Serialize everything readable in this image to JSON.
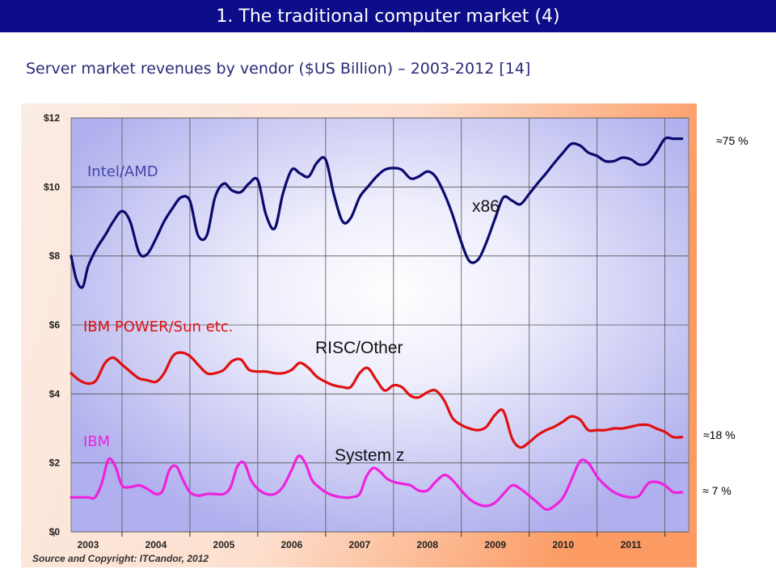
{
  "header": {
    "title": "1. The traditional computer market (4)",
    "subtitle": "Server market revenues by vendor ($US Billion) – 2003-2012 [14]"
  },
  "colors": {
    "header_bg": "#0d0d8a",
    "x86": "#0a0a6e",
    "risc": "#e01010",
    "systemz": "#ee22dd",
    "annot_x86": "#4444aa",
    "annot_risc": "#e01010",
    "annot_ibm": "#ee22dd"
  },
  "shares": {
    "x86": "≈75 %",
    "risc": "≈18 %",
    "ibm": "≈ 7 %"
  },
  "chart_data": {
    "type": "line",
    "title": "",
    "xlabel": "",
    "ylabel": "",
    "ylim": [
      0,
      12
    ],
    "xlim": [
      2002.75,
      2011.85
    ],
    "y_ticks": [
      "$0",
      "$2",
      "$4",
      "$6",
      "$8",
      "$10",
      "$12"
    ],
    "x_ticks": [
      "2003",
      "2004",
      "2005",
      "2006",
      "2007",
      "2008",
      "2009",
      "2010",
      "2011"
    ],
    "grid": true,
    "source": "Source and Copyright: ITCandor, 2012",
    "annotations": {
      "x86_label": "Intel/AMD",
      "risc_label": "IBM POWER/Sun etc.",
      "ibm_label": "IBM",
      "x86_series_tag": "x86",
      "risc_series_tag": "RISC/Other",
      "systemz_series_tag": "System z"
    },
    "series": [
      {
        "name": "x86",
        "x": [
          2002.75,
          2002.83,
          2002.92,
          2003.0,
          2003.12,
          2003.25,
          2003.37,
          2003.5,
          2003.62,
          2003.75,
          2003.87,
          2004.0,
          2004.12,
          2004.25,
          2004.37,
          2004.5,
          2004.62,
          2004.75,
          2004.87,
          2005.0,
          2005.12,
          2005.25,
          2005.37,
          2005.5,
          2005.62,
          2005.75,
          2005.87,
          2006.0,
          2006.12,
          2006.25,
          2006.37,
          2006.5,
          2006.62,
          2006.75,
          2006.87,
          2007.0,
          2007.12,
          2007.25,
          2007.37,
          2007.5,
          2007.62,
          2007.75,
          2007.87,
          2008.0,
          2008.12,
          2008.25,
          2008.37,
          2008.5,
          2008.62,
          2008.75,
          2008.87,
          2009.0,
          2009.12,
          2009.25,
          2009.37,
          2009.5,
          2009.62,
          2009.75,
          2009.87,
          2010.0,
          2010.12,
          2010.25,
          2010.37,
          2010.5,
          2010.62,
          2010.75,
          2010.87,
          2011.0,
          2011.12,
          2011.25,
          2011.37,
          2011.5,
          2011.62,
          2011.75
        ],
        "values": [
          8.0,
          7.3,
          7.1,
          7.7,
          8.2,
          8.6,
          9.0,
          9.3,
          9.0,
          8.1,
          8.05,
          8.5,
          9.0,
          9.4,
          9.7,
          9.6,
          8.6,
          8.6,
          9.7,
          10.1,
          9.9,
          9.85,
          10.1,
          10.2,
          9.2,
          8.8,
          9.8,
          10.5,
          10.4,
          10.3,
          10.7,
          10.8,
          9.8,
          9.0,
          9.1,
          9.7,
          10.0,
          10.3,
          10.5,
          10.55,
          10.5,
          10.25,
          10.3,
          10.45,
          10.3,
          9.8,
          9.2,
          8.4,
          7.85,
          7.9,
          8.4,
          9.1,
          9.7,
          9.6,
          9.5,
          9.8,
          10.1,
          10.4,
          10.7,
          11.0,
          11.25,
          11.2,
          11.0,
          10.9,
          10.75,
          10.75,
          10.85,
          10.8,
          10.65,
          10.7,
          11.0,
          11.4,
          11.4,
          11.4
        ]
      },
      {
        "name": "RISC/Other",
        "x": [
          2002.75,
          2002.87,
          2003.0,
          2003.12,
          2003.25,
          2003.37,
          2003.5,
          2003.62,
          2003.75,
          2003.87,
          2004.0,
          2004.12,
          2004.25,
          2004.37,
          2004.5,
          2004.62,
          2004.75,
          2004.87,
          2005.0,
          2005.12,
          2005.25,
          2005.37,
          2005.5,
          2005.62,
          2005.75,
          2005.87,
          2006.0,
          2006.12,
          2006.25,
          2006.37,
          2006.5,
          2006.62,
          2006.75,
          2006.87,
          2007.0,
          2007.12,
          2007.25,
          2007.37,
          2007.5,
          2007.62,
          2007.75,
          2007.87,
          2008.0,
          2008.12,
          2008.25,
          2008.37,
          2008.5,
          2008.62,
          2008.75,
          2008.87,
          2009.0,
          2009.12,
          2009.25,
          2009.37,
          2009.5,
          2009.62,
          2009.75,
          2009.87,
          2010.0,
          2010.12,
          2010.25,
          2010.37,
          2010.5,
          2010.62,
          2010.75,
          2010.87,
          2011.0,
          2011.12,
          2011.25,
          2011.37,
          2011.5,
          2011.62,
          2011.75
        ],
        "values": [
          4.6,
          4.4,
          4.3,
          4.4,
          4.9,
          5.05,
          4.85,
          4.65,
          4.45,
          4.4,
          4.35,
          4.6,
          5.1,
          5.2,
          5.1,
          4.85,
          4.6,
          4.6,
          4.7,
          4.95,
          5.0,
          4.7,
          4.65,
          4.65,
          4.6,
          4.6,
          4.7,
          4.9,
          4.75,
          4.5,
          4.35,
          4.25,
          4.2,
          4.2,
          4.6,
          4.75,
          4.4,
          4.1,
          4.25,
          4.2,
          3.95,
          3.9,
          4.05,
          4.1,
          3.8,
          3.3,
          3.1,
          3.0,
          2.95,
          3.05,
          3.4,
          3.5,
          2.7,
          2.45,
          2.6,
          2.8,
          2.95,
          3.05,
          3.2,
          3.35,
          3.25,
          2.95,
          2.95,
          2.95,
          3.0,
          3.0,
          3.05,
          3.1,
          3.1,
          3.0,
          2.9,
          2.75,
          2.75
        ]
      },
      {
        "name": "System z",
        "x": [
          2002.75,
          2002.87,
          2003.0,
          2003.1,
          2003.2,
          2003.3,
          2003.4,
          2003.5,
          2003.62,
          2003.75,
          2003.87,
          2004.0,
          2004.1,
          2004.2,
          2004.3,
          2004.4,
          2004.5,
          2004.62,
          2004.75,
          2004.87,
          2005.0,
          2005.1,
          2005.2,
          2005.3,
          2005.4,
          2005.5,
          2005.62,
          2005.75,
          2005.87,
          2006.0,
          2006.1,
          2006.2,
          2006.3,
          2006.4,
          2006.5,
          2006.62,
          2006.75,
          2006.87,
          2007.0,
          2007.1,
          2007.2,
          2007.3,
          2007.4,
          2007.5,
          2007.62,
          2007.75,
          2007.87,
          2008.0,
          2008.12,
          2008.25,
          2008.37,
          2008.5,
          2008.62,
          2008.75,
          2008.87,
          2009.0,
          2009.12,
          2009.25,
          2009.37,
          2009.5,
          2009.62,
          2009.75,
          2009.87,
          2010.0,
          2010.12,
          2010.25,
          2010.37,
          2010.5,
          2010.62,
          2010.75,
          2010.87,
          2011.0,
          2011.12,
          2011.25,
          2011.37,
          2011.5,
          2011.62,
          2011.75
        ],
        "values": [
          1.0,
          1.0,
          1.0,
          1.0,
          1.4,
          2.1,
          1.9,
          1.35,
          1.3,
          1.35,
          1.25,
          1.1,
          1.2,
          1.8,
          1.9,
          1.5,
          1.15,
          1.05,
          1.1,
          1.1,
          1.1,
          1.3,
          1.9,
          2.0,
          1.5,
          1.25,
          1.1,
          1.1,
          1.3,
          1.8,
          2.2,
          2.0,
          1.5,
          1.3,
          1.15,
          1.05,
          1.0,
          1.0,
          1.1,
          1.6,
          1.85,
          1.75,
          1.55,
          1.45,
          1.4,
          1.35,
          1.2,
          1.2,
          1.45,
          1.65,
          1.5,
          1.2,
          0.95,
          0.8,
          0.75,
          0.85,
          1.1,
          1.35,
          1.25,
          1.05,
          0.85,
          0.65,
          0.75,
          1.0,
          1.5,
          2.05,
          2.0,
          1.6,
          1.35,
          1.15,
          1.05,
          1.0,
          1.05,
          1.4,
          1.45,
          1.35,
          1.15,
          1.15
        ]
      }
    ]
  }
}
